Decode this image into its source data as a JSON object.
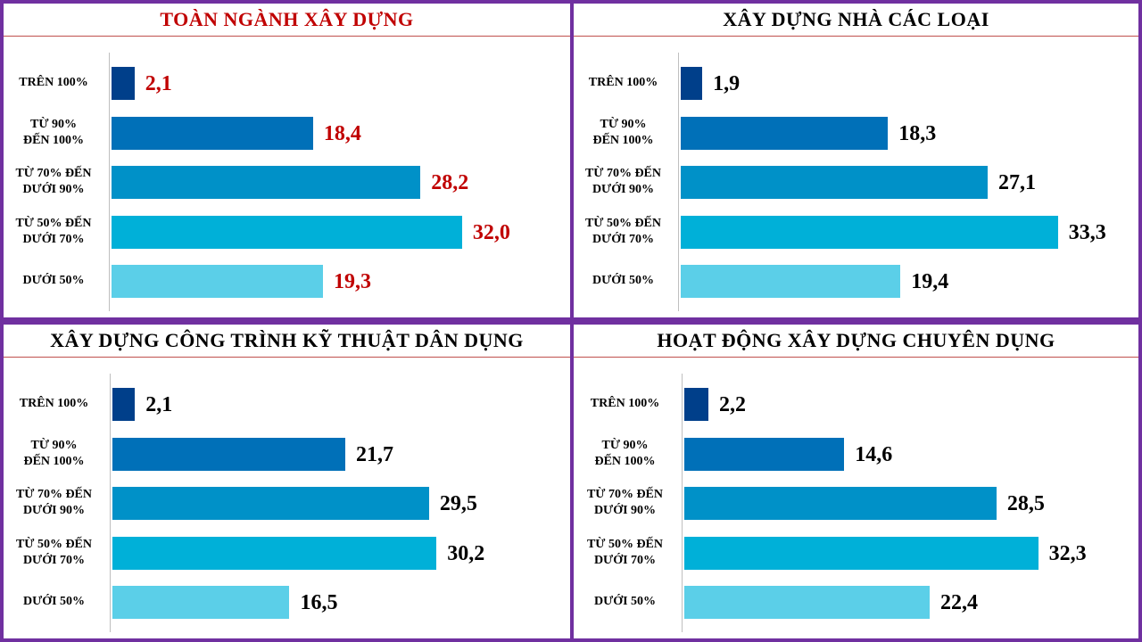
{
  "colors": {
    "frame": "#7030a0",
    "title_red": "#c00000",
    "title_black": "#000000",
    "bars": [
      "#003f8a",
      "#0070b8",
      "#0091c8",
      "#00b0d8",
      "#5bcfe8"
    ]
  },
  "chart_data": [
    {
      "type": "bar",
      "orientation": "horizontal",
      "title": "TOÀN NGÀNH XÂY DỰNG",
      "title_color": "#c00000",
      "label_color": "#c00000",
      "categories": [
        "TRÊN 100%",
        "TỪ 90%\nĐẾN 100%",
        "TỪ 70% ĐẾN\nDƯỚI 90%",
        "TỪ 50% ĐẾN\nDƯỚI 70%",
        "DƯỚI 50%"
      ],
      "values": [
        2.1,
        18.4,
        28.2,
        32.0,
        19.3
      ],
      "value_labels": [
        "2,1",
        "18,4",
        "28,2",
        "32,0",
        "19,3"
      ],
      "xlim": [
        0,
        36
      ]
    },
    {
      "type": "bar",
      "orientation": "horizontal",
      "title": "XÂY DỰNG NHÀ CÁC LOẠI",
      "title_color": "#000000",
      "label_color": "#000000",
      "categories": [
        "TRÊN 100%",
        "TỪ 90%\nĐẾN 100%",
        "TỪ 70% ĐẾN\nDƯỚI 90%",
        "TỪ 50% ĐẾN\nDƯỚI 70%",
        "DƯỚI 50%"
      ],
      "values": [
        1.9,
        18.3,
        27.1,
        33.3,
        19.4
      ],
      "value_labels": [
        "1,9",
        "18,3",
        "27,1",
        "33,3",
        "19,4"
      ],
      "xlim": [
        0,
        36
      ]
    },
    {
      "type": "bar",
      "orientation": "horizontal",
      "title": "XÂY DỰNG CÔNG TRÌNH KỸ THUẬT DÂN DỤNG",
      "title_color": "#000000",
      "label_color": "#000000",
      "categories": [
        "TRÊN 100%",
        "TỪ 90%\nĐẾN 100%",
        "TỪ 70% ĐẾN\nDƯỚI 90%",
        "TỪ 50% ĐẾN\nDƯỚI 70%",
        "DƯỚI 50%"
      ],
      "values": [
        2.1,
        21.7,
        29.5,
        30.2,
        16.5
      ],
      "value_labels": [
        "2,1",
        "21,7",
        "29,5",
        "30,2",
        "16,5"
      ],
      "xlim": [
        0,
        36
      ]
    },
    {
      "type": "bar",
      "orientation": "horizontal",
      "title": "HOẠT ĐỘNG XÂY DỰNG CHUYÊN DỤNG",
      "title_color": "#000000",
      "label_color": "#000000",
      "categories": [
        "TRÊN 100%",
        "TỪ 90%\nĐẾN 100%",
        "TỪ 70% ĐẾN\nDƯỚI 90%",
        "TỪ 50% ĐẾN\nDƯỚI 70%",
        "DƯỚI 50%"
      ],
      "values": [
        2.2,
        14.6,
        28.5,
        32.3,
        22.4
      ],
      "value_labels": [
        "2,2",
        "14,6",
        "28,5",
        "32,3",
        "22,4"
      ],
      "xlim": [
        0,
        36
      ]
    }
  ]
}
